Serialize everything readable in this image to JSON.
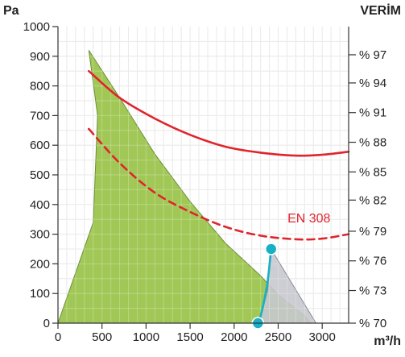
{
  "chart_data": {
    "type": "area",
    "xlabel": "m³/h",
    "ylabel": "Pa",
    "y2label": "VERİM",
    "xlim": [
      0,
      3300
    ],
    "ylim": [
      0,
      1000
    ],
    "x_ticks": [
      "0",
      "500",
      "1000",
      "1500",
      "2000",
      "2500",
      "3000"
    ],
    "y_ticks": [
      "0",
      "100",
      "200",
      "300",
      "400",
      "500",
      "600",
      "700",
      "800",
      "900",
      "1000"
    ],
    "y2_ticks": [
      "% 70",
      "% 73",
      "% 76",
      "% 79",
      "% 82",
      "% 85",
      "% 88",
      "% 91",
      "% 94",
      "% 97"
    ],
    "y2_tick_positions": [
      0,
      110,
      210,
      310,
      415,
      510,
      610,
      710,
      810,
      905
    ],
    "series": [
      {
        "kind": "operating-area",
        "color": "#9cc54e",
        "points": [
          [
            0,
            0
          ],
          [
            400,
            340
          ],
          [
            450,
            700
          ],
          [
            350,
            920
          ],
          [
            700,
            760
          ],
          [
            1100,
            570
          ],
          [
            1500,
            410
          ],
          [
            1900,
            270
          ],
          [
            2300,
            160
          ],
          [
            2500,
            95
          ],
          [
            2800,
            25
          ],
          [
            2870,
            0
          ]
        ]
      },
      {
        "kind": "extended-area",
        "color": "#c8c8cf",
        "points": [
          [
            2420,
            250
          ],
          [
            2930,
            0
          ],
          [
            2280,
            0
          ],
          [
            2380,
            110
          ]
        ]
      },
      {
        "kind": "efficiency-curve",
        "color": "#e0242c",
        "dashed": false,
        "points": [
          [
            350,
            850
          ],
          [
            700,
            760
          ],
          [
            1100,
            690
          ],
          [
            1500,
            635
          ],
          [
            1900,
            595
          ],
          [
            2300,
            575
          ],
          [
            2700,
            565
          ],
          [
            3000,
            568
          ],
          [
            3300,
            578
          ]
        ]
      },
      {
        "name": "EN 308",
        "kind": "efficiency-curve",
        "color": "#e0242c",
        "dashed": true,
        "points": [
          [
            350,
            655
          ],
          [
            700,
            540
          ],
          [
            1100,
            440
          ],
          [
            1500,
            375
          ],
          [
            1900,
            325
          ],
          [
            2300,
            295
          ],
          [
            2700,
            283
          ],
          [
            3000,
            285
          ],
          [
            3300,
            300
          ]
        ]
      },
      {
        "kind": "operating-line",
        "color": "#17b0c6",
        "points": [
          [
            2280,
            0
          ],
          [
            2330,
            60
          ],
          [
            2380,
            140
          ],
          [
            2420,
            250
          ]
        ]
      }
    ],
    "markers": [
      {
        "x": 2420,
        "y": 250,
        "color": "#17b0c6"
      },
      {
        "x": 2270,
        "y": 0,
        "color": "#17b0c6"
      }
    ],
    "annotations": [
      {
        "text": "EN 308",
        "x": 2850,
        "y": 340,
        "color": "#e0242c"
      }
    ]
  }
}
